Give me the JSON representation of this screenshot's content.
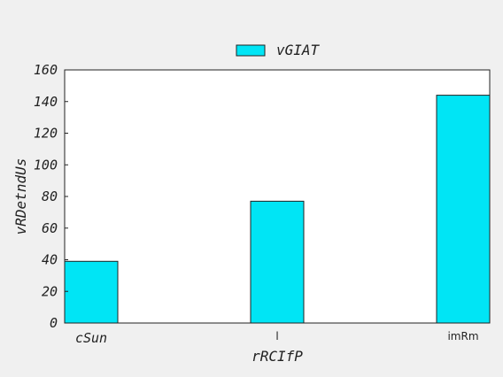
{
  "chart_data": {
    "type": "bar",
    "categories": [
      "cSun",
      "l",
      "imRm"
    ],
    "series": [
      {
        "name": "vGIAT",
        "values": [
          39,
          77,
          144
        ]
      }
    ],
    "title": "",
    "xlabel": "rRCIfP",
    "ylabel": "vRDetndUs",
    "ylim": [
      0,
      160
    ],
    "yticks": [
      0,
      20,
      40,
      60,
      80,
      100,
      120,
      140,
      160
    ],
    "bar_color": "#00e5f5",
    "legend_position": "top-center",
    "grid": false
  }
}
